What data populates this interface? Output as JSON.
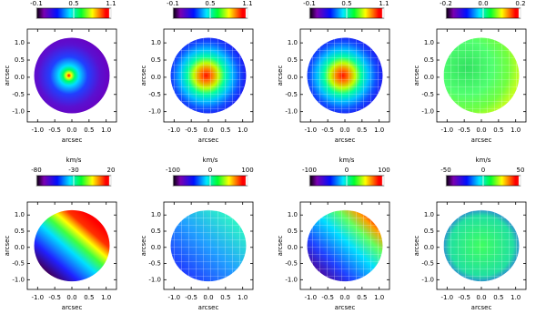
{
  "chart_data": [
    {
      "type": "map",
      "clim": [
        -0.1,
        1.1
      ],
      "cticks": [
        -0.1,
        0.5,
        1.1
      ],
      "xlabel": "arcsec",
      "ylabel": "arcsec",
      "xlim": [
        -1.3,
        1.3
      ],
      "ylim": [
        -1.3,
        1.4
      ],
      "xticks": [
        {
          "value": -1,
          "label": "-1.0"
        },
        -0.5,
        {
          "value": 0,
          "label": "0.0"
        },
        0.5,
        {
          "value": 1,
          "label": "1.0"
        }
      ],
      "yticks": [
        {
          "value": -1,
          "label": "-1.0"
        },
        -0.5,
        {
          "value": 0,
          "label": "0.0"
        },
        0.5,
        {
          "value": 1,
          "label": "1.0"
        }
      ]
    },
    {
      "type": "map",
      "clim": [
        -0.1,
        1.1
      ],
      "cticks": [
        -0.1,
        0.5,
        1.1
      ],
      "xlabel": "arcsec",
      "ylabel": "arcsec",
      "xlim": [
        -1.3,
        1.3
      ],
      "ylim": [
        -1.3,
        1.4
      ],
      "xticks": [
        {
          "value": -1,
          "label": "-1.0"
        },
        -0.5,
        {
          "value": 0,
          "label": "0.0"
        },
        0.5,
        {
          "value": 1,
          "label": "1.0"
        }
      ],
      "yticks": [
        {
          "value": -1,
          "label": "-1.0"
        },
        -0.5,
        {
          "value": 0,
          "label": "0.0"
        },
        0.5,
        {
          "value": 1,
          "label": "1.0"
        }
      ]
    },
    {
      "type": "map",
      "clim": [
        -0.1,
        1.1
      ],
      "cticks": [
        -0.1,
        0.5,
        1.1
      ],
      "xlabel": "arcsec",
      "ylabel": "arcsec",
      "xlim": [
        -1.3,
        1.3
      ],
      "ylim": [
        -1.3,
        1.4
      ],
      "xticks": [
        {
          "value": -1,
          "label": "-1.0"
        },
        -0.5,
        {
          "value": 0,
          "label": "0.0"
        },
        0.5,
        {
          "value": 1,
          "label": "1.0"
        }
      ],
      "yticks": [
        {
          "value": -1,
          "label": "-1.0"
        },
        -0.5,
        {
          "value": 0,
          "label": "0.0"
        },
        0.5,
        {
          "value": 1,
          "label": "1.0"
        }
      ]
    },
    {
      "type": "map",
      "clim": [
        -0.2,
        0.2
      ],
      "cticks": [
        -0.2,
        {
          "value": 0,
          "label": "0.0"
        },
        0.2
      ],
      "xlabel": "arcsec",
      "ylabel": "arcsec",
      "xlim": [
        -1.3,
        1.3
      ],
      "ylim": [
        -1.3,
        1.4
      ],
      "xticks": [
        {
          "value": -1,
          "label": "-1.0"
        },
        -0.5,
        {
          "value": 0,
          "label": "0.0"
        },
        0.5,
        {
          "value": 1,
          "label": "1.0"
        }
      ],
      "yticks": [
        {
          "value": -1,
          "label": "-1.0"
        },
        -0.5,
        {
          "value": 0,
          "label": "0.0"
        },
        0.5,
        {
          "value": 1,
          "label": "1.0"
        }
      ]
    },
    {
      "type": "map",
      "clabel": "km/s",
      "clim": [
        -80,
        20
      ],
      "cticks": [
        -80,
        -30,
        20
      ],
      "xlabel": "arcsec",
      "ylabel": "arcsec",
      "xlim": [
        -1.3,
        1.3
      ],
      "ylim": [
        -1.3,
        1.4
      ],
      "xticks": [
        {
          "value": -1,
          "label": "-1.0"
        },
        -0.5,
        {
          "value": 0,
          "label": "0.0"
        },
        0.5,
        {
          "value": 1,
          "label": "1.0"
        }
      ],
      "yticks": [
        {
          "value": -1,
          "label": "-1.0"
        },
        -0.5,
        {
          "value": 0,
          "label": "0.0"
        },
        0.5,
        {
          "value": 1,
          "label": "1.0"
        }
      ]
    },
    {
      "type": "map",
      "clabel": "km/s",
      "clim": [
        -100,
        100
      ],
      "cticks": [
        -100,
        0,
        100
      ],
      "xlabel": "arcsec",
      "ylabel": "arcsec",
      "xlim": [
        -1.3,
        1.3
      ],
      "ylim": [
        -1.3,
        1.4
      ],
      "xticks": [
        {
          "value": -1,
          "label": "-1.0"
        },
        -0.5,
        {
          "value": 0,
          "label": "0.0"
        },
        0.5,
        {
          "value": 1,
          "label": "1.0"
        }
      ],
      "yticks": [
        {
          "value": -1,
          "label": "-1.0"
        },
        -0.5,
        {
          "value": 0,
          "label": "0.0"
        },
        0.5,
        {
          "value": 1,
          "label": "1.0"
        }
      ]
    },
    {
      "type": "map",
      "clabel": "km/s",
      "clim": [
        -100,
        100
      ],
      "cticks": [
        -100,
        0,
        100
      ],
      "xlabel": "arcsec",
      "ylabel": "arcsec",
      "xlim": [
        -1.3,
        1.3
      ],
      "ylim": [
        -1.3,
        1.4
      ],
      "xticks": [
        {
          "value": -1,
          "label": "-1.0"
        },
        -0.5,
        {
          "value": 0,
          "label": "0.0"
        },
        0.5,
        {
          "value": 1,
          "label": "1.0"
        }
      ],
      "yticks": [
        {
          "value": -1,
          "label": "-1.0"
        },
        -0.5,
        {
          "value": 0,
          "label": "0.0"
        },
        0.5,
        {
          "value": 1,
          "label": "1.0"
        }
      ]
    },
    {
      "type": "map",
      "clabel": "km/s",
      "clim": [
        -50,
        50
      ],
      "cticks": [
        -50,
        0,
        50
      ],
      "xlabel": "arcsec",
      "ylabel": "arcsec",
      "xlim": [
        -1.3,
        1.3
      ],
      "ylim": [
        -1.3,
        1.4
      ],
      "xticks": [
        {
          "value": -1,
          "label": "-1.0"
        },
        -0.5,
        {
          "value": 0,
          "label": "0.0"
        },
        0.5,
        {
          "value": 1,
          "label": "1.0"
        }
      ],
      "yticks": [
        {
          "value": -1,
          "label": "-1.0"
        },
        -0.5,
        {
          "value": 0,
          "label": "0.0"
        },
        0.5,
        {
          "value": 1,
          "label": "1.0"
        }
      ]
    }
  ]
}
